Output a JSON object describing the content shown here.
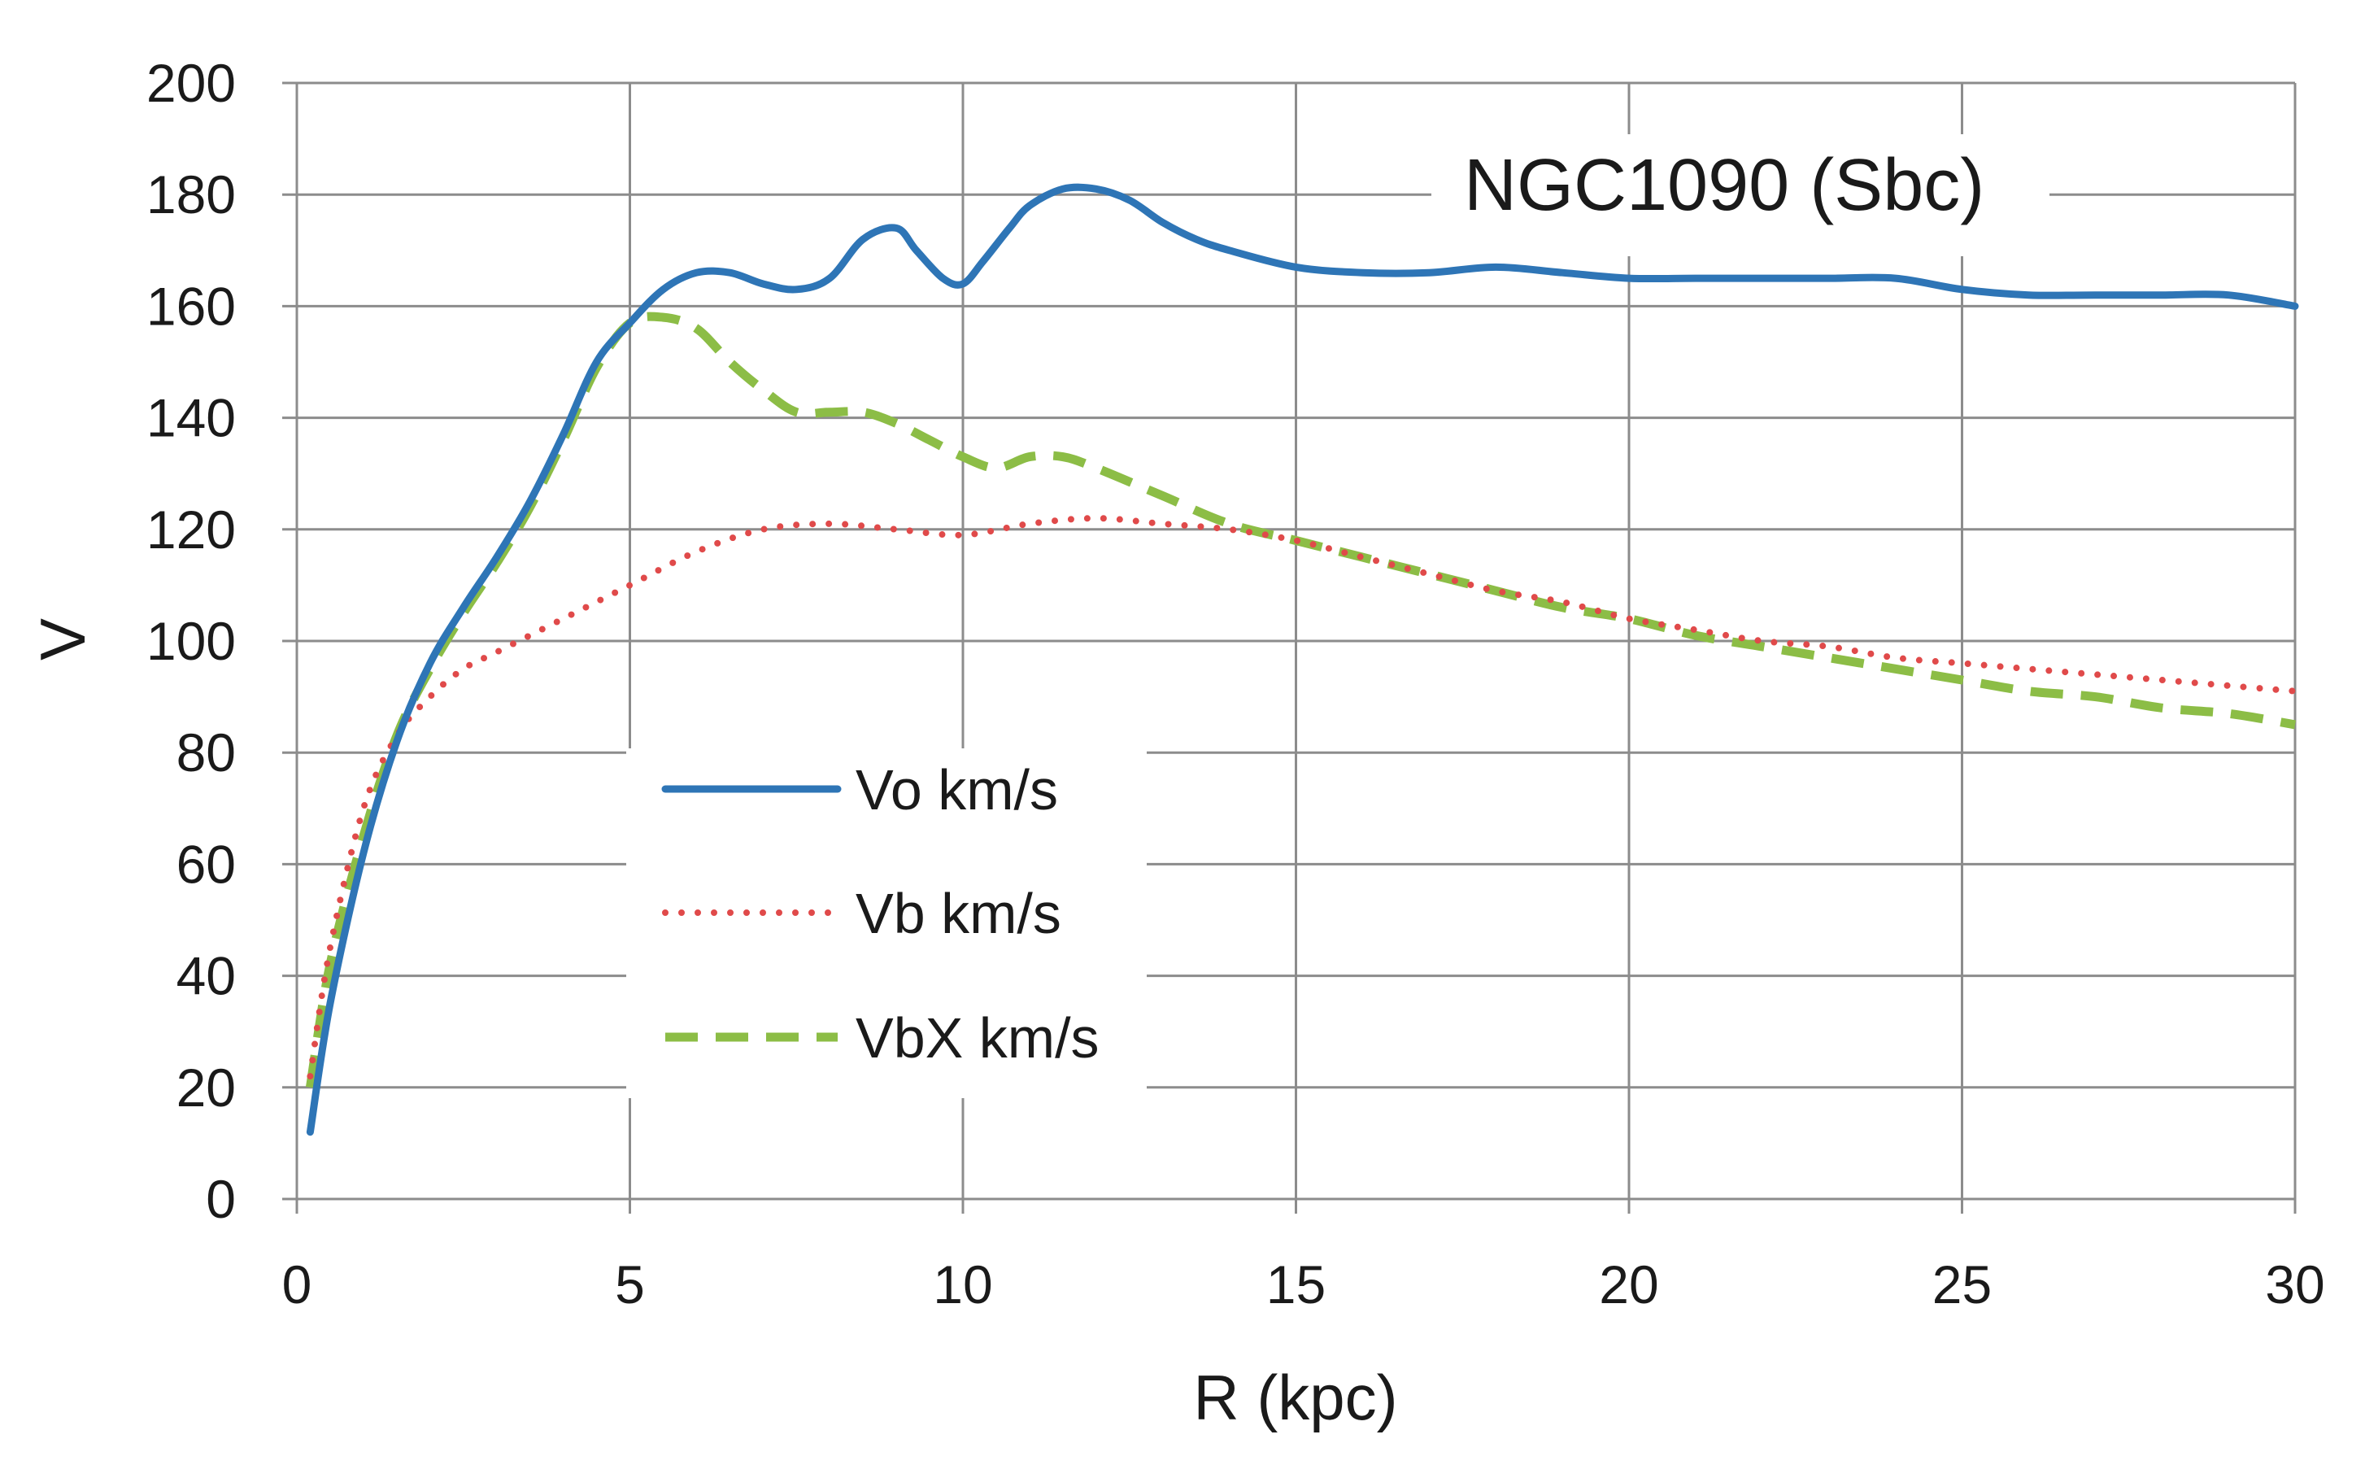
{
  "chart_data": {
    "type": "line",
    "title": "NGC1090 (Sbc)",
    "xlabel": "R (kpc)",
    "ylabel": "V",
    "xlim": [
      0,
      30
    ],
    "ylim": [
      0,
      200
    ],
    "xticks": [
      0,
      5,
      10,
      15,
      20,
      25,
      30
    ],
    "yticks": [
      0,
      20,
      40,
      60,
      80,
      100,
      120,
      140,
      160,
      180,
      200
    ],
    "grid": true,
    "legend_position": "center-left",
    "series": [
      {
        "name": "Vo km/s",
        "color": "#2e75b6",
        "style": "solid",
        "x": [
          0.2,
          0.5,
          1.0,
          1.5,
          2.0,
          2.5,
          3.0,
          3.5,
          4.0,
          4.5,
          5.0,
          5.5,
          6.0,
          6.5,
          7.0,
          7.5,
          8.0,
          8.5,
          9.0,
          9.3,
          9.7,
          10.0,
          10.3,
          10.7,
          11.0,
          11.5,
          12.0,
          12.5,
          13.0,
          13.5,
          14.0,
          15.0,
          16.0,
          17.0,
          18.0,
          19.0,
          20.0,
          21.0,
          22.0,
          23.0,
          24.0,
          25.0,
          26.0,
          27.0,
          28.0,
          29.0,
          30.0
        ],
        "values": [
          12,
          35,
          62,
          82,
          96,
          106,
          115,
          125,
          137,
          150,
          157,
          163,
          166,
          166,
          164,
          163,
          165,
          172,
          174,
          170,
          165,
          164,
          168,
          174,
          178,
          181,
          181,
          179,
          175,
          172,
          170,
          167,
          166,
          166,
          167,
          166,
          165,
          165,
          165,
          165,
          165,
          163,
          162,
          162,
          162,
          162,
          160
        ]
      },
      {
        "name": "Vb km/s",
        "color": "#e04a4a",
        "style": "dotted",
        "x": [
          0.2,
          0.5,
          1.0,
          1.5,
          2.0,
          2.5,
          3.0,
          4.0,
          5.0,
          6.0,
          7.0,
          8.0,
          9.0,
          10.0,
          11.0,
          12.0,
          13.0,
          14.0,
          15.0,
          16.0,
          17.0,
          18.0,
          19.0,
          20.0,
          21.0,
          22.0,
          23.0,
          24.0,
          25.0,
          26.0,
          27.0,
          28.0,
          29.0,
          30.0
        ],
        "values": [
          22,
          45,
          70,
          83,
          90,
          95,
          98,
          104,
          110,
          116,
          120,
          121,
          120,
          119,
          121,
          122,
          121,
          120,
          118,
          115,
          112,
          109,
          107,
          104,
          102,
          100,
          99,
          97,
          96,
          95,
          94,
          93,
          92,
          91
        ]
      },
      {
        "name": "VbX km/s",
        "color": "#8cbd46",
        "style": "dashed",
        "x": [
          0.2,
          0.5,
          1.0,
          1.5,
          2.0,
          2.5,
          3.0,
          3.5,
          4.0,
          4.5,
          5.0,
          5.5,
          6.0,
          6.5,
          7.0,
          7.5,
          8.0,
          8.5,
          9.0,
          9.5,
          10.0,
          10.5,
          11.0,
          11.5,
          12.0,
          13.0,
          14.0,
          15.0,
          16.0,
          17.0,
          18.0,
          19.0,
          20.0,
          21.0,
          22.0,
          23.0,
          24.0,
          25.0,
          26.0,
          27.0,
          28.0,
          29.0,
          30.0
        ],
        "values": [
          20,
          42,
          65,
          83,
          95,
          105,
          114,
          124,
          136,
          149,
          157,
          158,
          156,
          150,
          145,
          141,
          141,
          141,
          139,
          136,
          133,
          131,
          133,
          133,
          131,
          126,
          121,
          118,
          115,
          112,
          109,
          106,
          104,
          101,
          99,
          97,
          95,
          93,
          91,
          90,
          88,
          87,
          85
        ]
      }
    ]
  }
}
